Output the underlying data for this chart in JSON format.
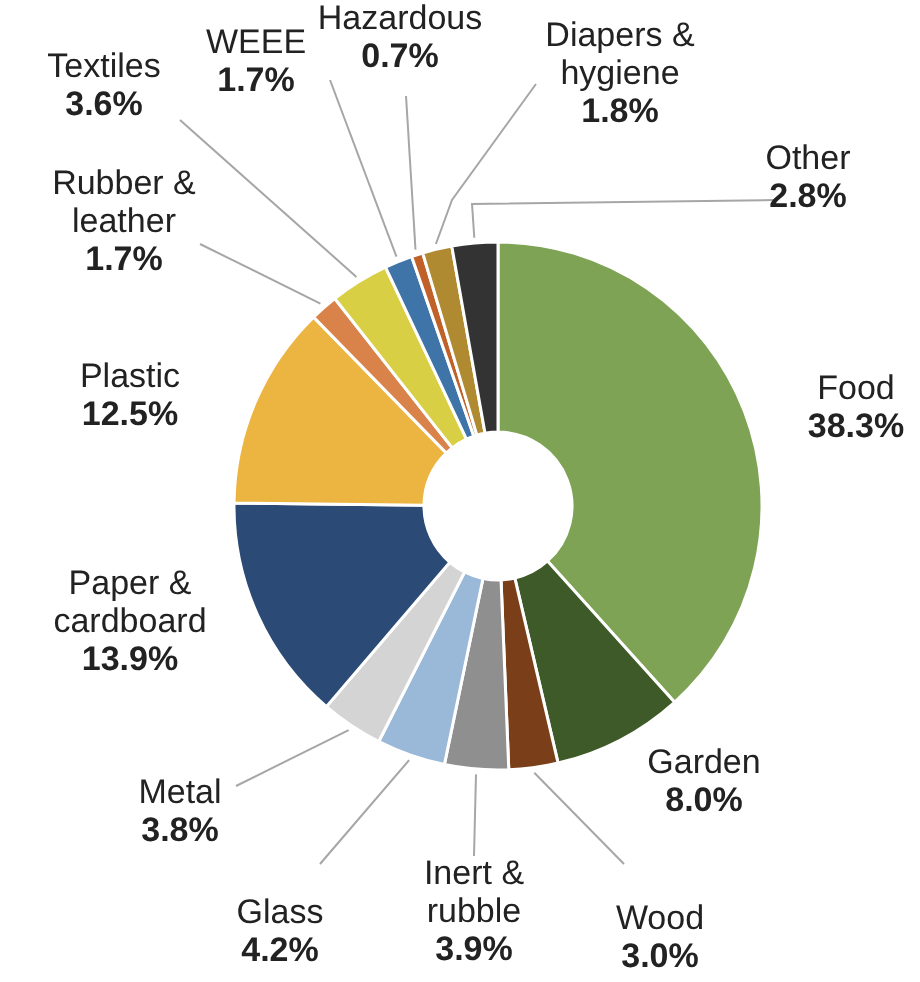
{
  "chart_data": {
    "type": "donut",
    "categories": [
      "Food",
      "Garden",
      "Wood",
      "Inert & rubble",
      "Glass",
      "Metal",
      "Paper & cardboard",
      "Plastic",
      "Rubber & leather",
      "Textiles",
      "WEEE",
      "Hazardous",
      "Diapers & hygiene",
      "Other"
    ],
    "values": [
      38.3,
      8.0,
      3.0,
      3.9,
      4.2,
      3.8,
      13.9,
      12.5,
      1.7,
      3.6,
      1.7,
      0.7,
      1.8,
      2.8
    ],
    "value_labels": [
      "38.3%",
      "8.0%",
      "3.0%",
      "3.9%",
      "4.2%",
      "3.8%",
      "13.9%",
      "12.5%",
      "1.7%",
      "3.6%",
      "1.7%",
      "0.7%",
      "1.8%",
      "2.8%"
    ],
    "colors": [
      "#7ea354",
      "#3d5a28",
      "#7a3f19",
      "#8f8f8f",
      "#9ab9d9",
      "#d4d4d4",
      "#2b4a75",
      "#ecb440",
      "#d9824a",
      "#d9cf45",
      "#3e74a8",
      "#c0612a",
      "#b08a30",
      "#333333"
    ]
  }
}
